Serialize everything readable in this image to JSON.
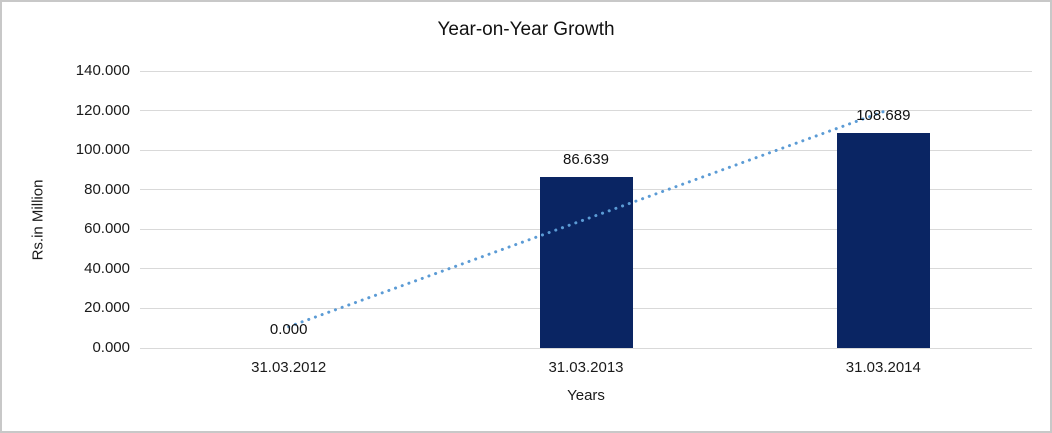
{
  "window": {
    "background_color": "#ffffff",
    "border_color": "#c8c8c8"
  },
  "chart_data": {
    "type": "bar",
    "title": "Year-on-Year Growth",
    "xlabel": "Years",
    "ylabel": "Rs.in Million",
    "categories": [
      "31.03.2012",
      "31.03.2013",
      "31.03.2014"
    ],
    "values": [
      0,
      86.639,
      108.689
    ],
    "data_labels": [
      "0.000",
      "86.639",
      "108.689"
    ],
    "y_ticks": [
      0,
      20,
      40,
      60,
      80,
      100,
      120,
      140
    ],
    "y_tick_labels": [
      "0.000",
      "20.000",
      "40.000",
      "60.000",
      "80.000",
      "100.000",
      "120.000",
      "140.000"
    ],
    "ylim": [
      0,
      140
    ],
    "grid": true,
    "legend": "none",
    "bar_color": "#0a2563",
    "gridline_color": "#d9d9d9",
    "trendline": {
      "type": "linear",
      "style": "dotted",
      "color": "#5b9bd5",
      "start_value": 10.77,
      "end_value": 119.45
    }
  }
}
